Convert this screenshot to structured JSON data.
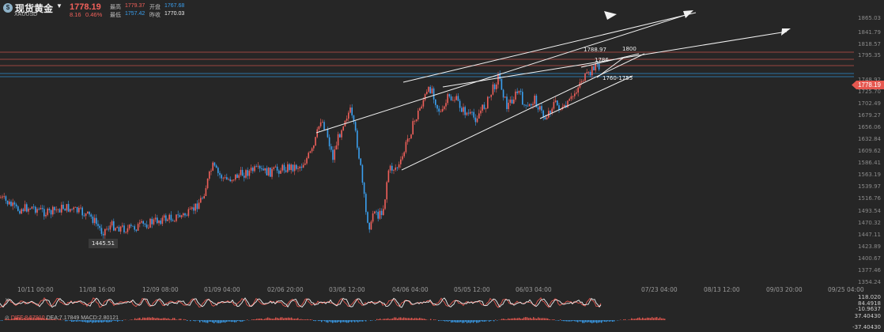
{
  "header": {
    "symbol_name": "现货黄金",
    "symbol_code": "XAUUSD",
    "price": "1778.19",
    "change": "8.16",
    "change_pct": "0.46%",
    "high_label": "最高",
    "high_value": "1779.37",
    "open_label": "开盘",
    "open_value": "1767.68",
    "low_label": "最低",
    "low_value": "1757.42",
    "prev_close_label": "昨收",
    "prev_close_value": "1770.03",
    "icon": "gold-coin-icon",
    "dropdown_icon": "chevron-down-icon"
  },
  "y_axis": [
    "1865.03",
    "1841.79",
    "1818.57",
    "1795.35",
    "1778.19",
    "1748.92",
    "1725.70",
    "1702.49",
    "1679.27",
    "1656.06",
    "1632.84",
    "1609.62",
    "1586.41",
    "1563.19",
    "1539.97",
    "1516.76",
    "1493.54",
    "1470.32",
    "1447.11",
    "1423.89",
    "1400.67",
    "1377.46",
    "1354.24"
  ],
  "x_axis": [
    "10/11 00:00",
    "11/08 16:00",
    "12/09 08:00",
    "01/09 04:00",
    "02/06 20:00",
    "03/06 12:00",
    "04/06 04:00",
    "05/05 12:00",
    "06/03 04:00",
    "07/23 04:00",
    "08/13 12:00",
    "09/03 20:00",
    "09/25 04:00"
  ],
  "annotations": {
    "low": "1445.51",
    "peak": "1788.97",
    "level_1800": "1800",
    "level_1786": "1786",
    "support_range": "1760-1755"
  },
  "current_price_tag": "1778.19",
  "indicators": {
    "macd_diff": "DIFF:8.57910",
    "macd_dea": "DEA:7.17849",
    "macd_value": "MACD:2.80121",
    "osc_axis": [
      "118.020",
      "84.4918",
      "-10.9637"
    ],
    "macd_axis": [
      "37.40430",
      "-37.40430"
    ]
  },
  "colors": {
    "up": "#f0605a",
    "down": "#3aa0f0",
    "background": "#262626"
  }
}
